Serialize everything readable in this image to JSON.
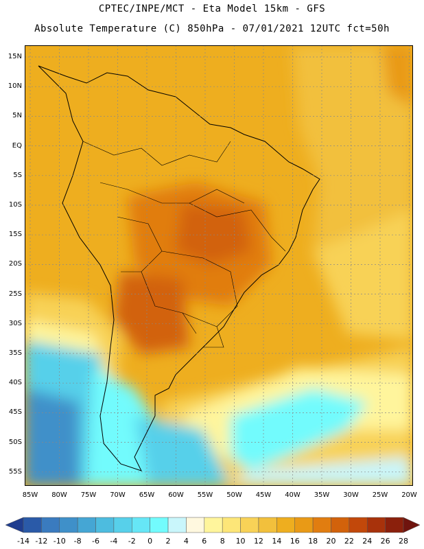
{
  "header": {
    "line1": "CPTEC/INPE/MCT -  Eta Model 15km - GFS",
    "line2": "Absolute Temperature (C) 850hPa - 07/01/2021 12UTC fct=50h"
  },
  "axes": {
    "lat_labels": [
      "15N",
      "10N",
      "5N",
      "EQ",
      "5S",
      "10S",
      "15S",
      "20S",
      "25S",
      "30S",
      "35S",
      "40S",
      "45S",
      "50S",
      "55S"
    ],
    "lon_labels": [
      "85W",
      "80W",
      "75W",
      "70W",
      "65W",
      "60W",
      "55W",
      "50W",
      "45W",
      "40W",
      "35W",
      "30W",
      "25W",
      "20W"
    ]
  },
  "colorbar": {
    "ticks": [
      "-14",
      "-12",
      "-10",
      "-8",
      "-6",
      "-4",
      "-2",
      "0",
      "2",
      "4",
      "6",
      "8",
      "10",
      "12",
      "14",
      "16",
      "18",
      "20",
      "22",
      "24",
      "26",
      "28"
    ],
    "colors": [
      "#1f3d8f",
      "#2a5aa8",
      "#3a7bbf",
      "#3f90c9",
      "#45a6d4",
      "#4dbcdf",
      "#57d0ea",
      "#66e6f6",
      "#72fbfd",
      "#c9f6fb",
      "#fff8df",
      "#fff59c",
      "#fde678",
      "#f8d257",
      "#f2c03c",
      "#eeae1f",
      "#e99a16",
      "#e17d10",
      "#d2620b",
      "#c2480a",
      "#a8320b",
      "#8b200c",
      "#6f140e"
    ]
  },
  "map": {
    "field": "Absolute Temperature (C) 850hPa",
    "regions": [
      {
        "name": "tropics-north",
        "value_c": 19
      },
      {
        "name": "atlantic-east",
        "value_c": 17
      },
      {
        "name": "central-brazil-hotspot",
        "value_c": 23
      },
      {
        "name": "chaco-hotspot",
        "value_c": 24
      },
      {
        "name": "south-atlantic-warm",
        "value_c": 12
      },
      {
        "name": "patagonia-cold",
        "value_c": 2
      },
      {
        "name": "southeast-pacific-cold",
        "value_c": -8
      },
      {
        "name": "south-atlantic-cold-tongue",
        "value_c": 4
      }
    ]
  }
}
